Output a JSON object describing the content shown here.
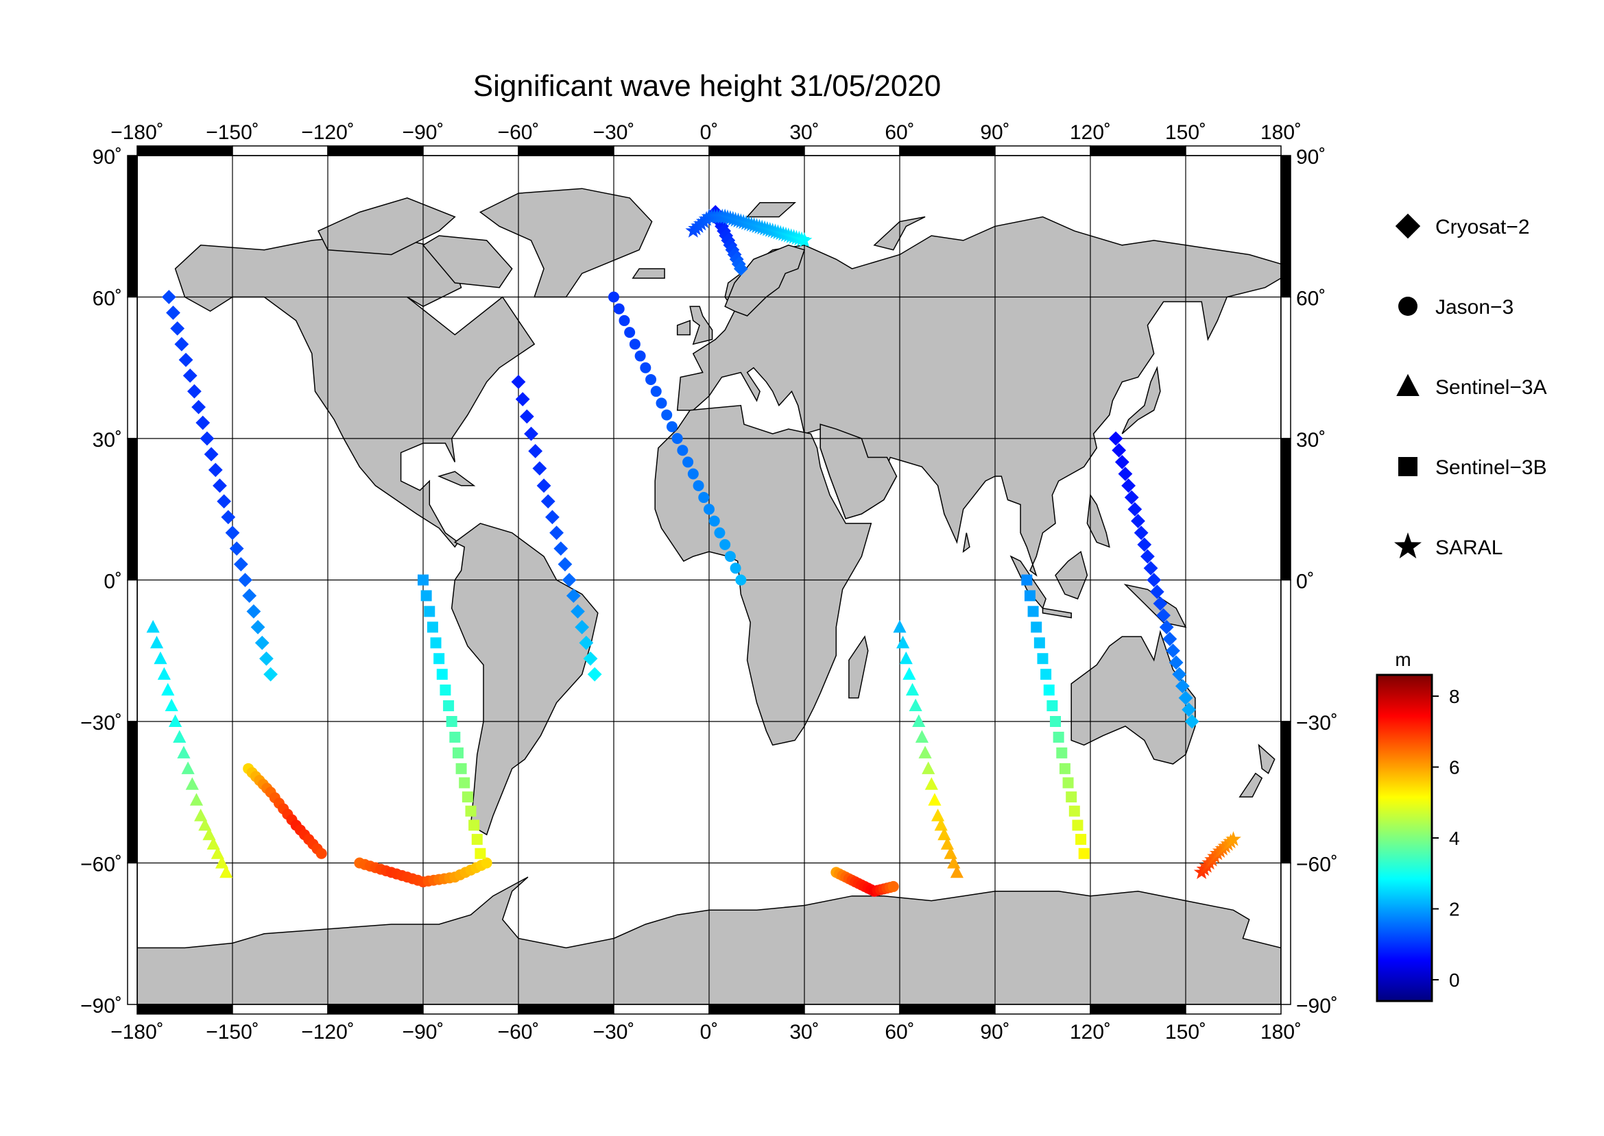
{
  "title": "Significant wave height 31/05/2020",
  "map": {
    "projection": "equirectangular",
    "lon_range": [
      -180,
      180
    ],
    "lat_range": [
      -90,
      90
    ],
    "grid_step_lon": 30,
    "grid_step_lat": 30,
    "grid": true,
    "land_color": "#bebebe",
    "ocean_color": "#ffffff",
    "x_ticks": [
      {
        "value": -180,
        "label": "−180˚"
      },
      {
        "value": -150,
        "label": "−150˚"
      },
      {
        "value": -120,
        "label": "−120˚"
      },
      {
        "value": -90,
        "label": "−90˚"
      },
      {
        "value": -60,
        "label": "−60˚"
      },
      {
        "value": -30,
        "label": "−30˚"
      },
      {
        "value": 0,
        "label": "0˚"
      },
      {
        "value": 30,
        "label": "30˚"
      },
      {
        "value": 60,
        "label": "60˚"
      },
      {
        "value": 90,
        "label": "90˚"
      },
      {
        "value": 120,
        "label": "120˚"
      },
      {
        "value": 150,
        "label": "150˚"
      },
      {
        "value": 180,
        "label": "180˚"
      }
    ],
    "y_ticks": [
      {
        "value": 90,
        "label": "90˚"
      },
      {
        "value": 60,
        "label": "60˚"
      },
      {
        "value": 30,
        "label": "30˚"
      },
      {
        "value": 0,
        "label": "0˚"
      },
      {
        "value": -30,
        "label": "−30˚"
      },
      {
        "value": -60,
        "label": "−60˚"
      },
      {
        "value": -90,
        "label": "−90˚"
      }
    ]
  },
  "legend": {
    "placement": "right",
    "items": [
      {
        "name": "Cryosat−2",
        "marker": "diamond"
      },
      {
        "name": "Jason−3",
        "marker": "circle"
      },
      {
        "name": "Sentinel−3A",
        "marker": "triangle"
      },
      {
        "name": "Sentinel−3B",
        "marker": "square"
      },
      {
        "name": "SARAL",
        "marker": "star"
      }
    ]
  },
  "colorbar": {
    "unit": "m",
    "min": -0.6,
    "max": 8.6,
    "ticks": [
      {
        "value": 0,
        "label": "0"
      },
      {
        "value": 2,
        "label": "2"
      },
      {
        "value": 4,
        "label": "4"
      },
      {
        "value": 6,
        "label": "6"
      },
      {
        "value": 8,
        "label": "8"
      }
    ],
    "colormap": [
      "#00007f",
      "#0000ff",
      "#007fff",
      "#00ffff",
      "#7fff7f",
      "#ffff00",
      "#ff7f00",
      "#ff0000",
      "#7f0000"
    ]
  },
  "chart_data": {
    "type": "scatter",
    "title": "Significant wave height 31/05/2020",
    "xlabel": "",
    "ylabel": "",
    "xlim": [
      -180,
      180
    ],
    "ylim": [
      -90,
      90
    ],
    "value_unit": "m",
    "series": [
      {
        "name": "Cryosat−2",
        "marker": "diamond",
        "tracks": [
          {
            "lon": [
              -170,
              -162,
              -154,
              -146,
              -138
            ],
            "lat": [
              60,
              40,
              20,
              0,
              -20
            ],
            "swh": [
              1.2,
              1.0,
              1.0,
              1.4,
              2.5
            ]
          },
          {
            "lon": [
              -60,
              -52,
              -44,
              -36
            ],
            "lat": [
              42,
              20,
              0,
              -20
            ],
            "swh": [
              0.8,
              1.0,
              1.5,
              2.8
            ]
          },
          {
            "lon": [
              2,
              6,
              10
            ],
            "lat": [
              78,
              72,
              66
            ],
            "swh": [
              0.7,
              1.0,
              1.5
            ]
          },
          {
            "lon": [
              128,
              134,
              140,
              146,
              152
            ],
            "lat": [
              30,
              15,
              0,
              -15,
              -30
            ],
            "swh": [
              0.6,
              0.8,
              1.0,
              1.5,
              2.2
            ]
          }
        ]
      },
      {
        "name": "Jason−3",
        "marker": "circle",
        "tracks": [
          {
            "lon": [
              -110,
              -100,
              -90,
              -80,
              -70
            ],
            "lat": [
              -60,
              -62,
              -64,
              -63,
              -60
            ],
            "swh": [
              6.5,
              7.0,
              6.8,
              6.0,
              5.5
            ]
          },
          {
            "lon": [
              -145,
              -138,
              -130,
              -122
            ],
            "lat": [
              -40,
              -45,
              -52,
              -58
            ],
            "swh": [
              5.5,
              6.5,
              7.2,
              6.8
            ]
          },
          {
            "lon": [
              40,
              46,
              52,
              58
            ],
            "lat": [
              -62,
              -64,
              -66,
              -65
            ],
            "swh": [
              6.0,
              7.0,
              7.5,
              6.5
            ]
          },
          {
            "lon": [
              -30,
              -20,
              -10,
              0,
              10
            ],
            "lat": [
              60,
              45,
              30,
              15,
              0
            ],
            "swh": [
              1.0,
              1.2,
              1.5,
              1.8,
              2.2
            ]
          }
        ]
      },
      {
        "name": "Sentinel−3A",
        "marker": "triangle",
        "tracks": [
          {
            "lon": [
              -175,
              -168,
              -160,
              -152
            ],
            "lat": [
              -10,
              -30,
              -50,
              -62
            ],
            "swh": [
              2.5,
              3.0,
              4.5,
              5.0
            ]
          },
          {
            "lon": [
              60,
              66,
              72,
              78
            ],
            "lat": [
              -10,
              -30,
              -50,
              -62
            ],
            "swh": [
              2.2,
              3.5,
              5.5,
              6.0
            ]
          }
        ]
      },
      {
        "name": "Sentinel−3B",
        "marker": "square",
        "tracks": [
          {
            "lon": [
              -90,
              -84,
              -78,
              -72
            ],
            "lat": [
              0,
              -20,
              -40,
              -58
            ],
            "swh": [
              2.0,
              2.8,
              4.0,
              5.0
            ]
          },
          {
            "lon": [
              100,
              106,
              112,
              118
            ],
            "lat": [
              0,
              -20,
              -40,
              -58
            ],
            "swh": [
              1.8,
              2.6,
              4.2,
              5.2
            ]
          }
        ]
      },
      {
        "name": "SARAL",
        "marker": "star",
        "tracks": [
          {
            "lon": [
              -5,
              0,
              5,
              10,
              15,
              20,
              25,
              30
            ],
            "lat": [
              74,
              77,
              77,
              76,
              75,
              74,
              73,
              72
            ],
            "swh": [
              1.2,
              1.4,
              1.6,
              1.8,
              2.0,
              2.2,
              2.5,
              2.8
            ]
          },
          {
            "lon": [
              155,
              160,
              165
            ],
            "lat": [
              -62,
              -58,
              -55
            ],
            "swh": [
              7.0,
              6.5,
              6.0
            ]
          }
        ]
      }
    ]
  }
}
